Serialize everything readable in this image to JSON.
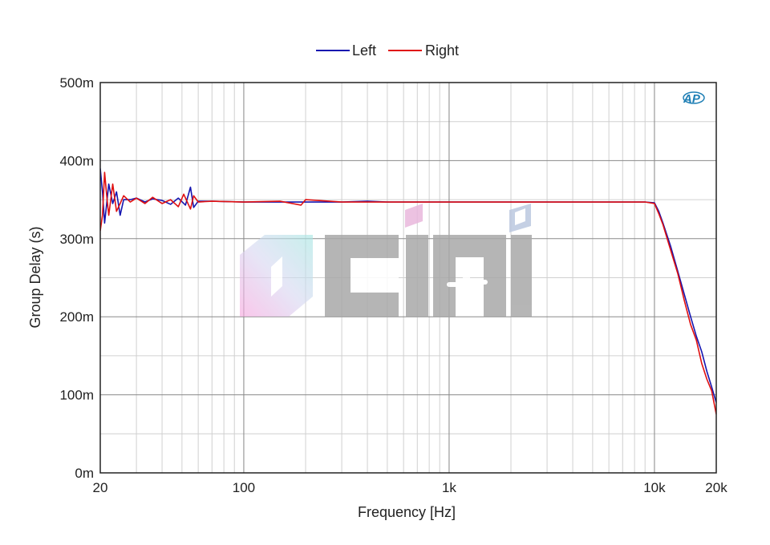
{
  "chart_data": {
    "type": "line",
    "title": "",
    "xlabel": "Frequency [Hz]",
    "ylabel": "Group Delay (s)",
    "xscale": "log",
    "xlim": [
      20,
      20000
    ],
    "ylim": [
      0,
      0.5
    ],
    "x_ticks": [
      {
        "value": 20,
        "label": "20"
      },
      {
        "value": 100,
        "label": "100"
      },
      {
        "value": 1000,
        "label": "1k"
      },
      {
        "value": 10000,
        "label": "10k"
      },
      {
        "value": 20000,
        "label": "20k"
      }
    ],
    "y_ticks": [
      {
        "value": 0,
        "label": "0m"
      },
      {
        "value": 0.1,
        "label": "100m"
      },
      {
        "value": 0.2,
        "label": "200m"
      },
      {
        "value": 0.3,
        "label": "300m"
      },
      {
        "value": 0.4,
        "label": "400m"
      },
      {
        "value": 0.5,
        "label": "500m"
      }
    ],
    "grid": true,
    "legend_position": "top-center",
    "logo_text": "AP",
    "series": [
      {
        "name": "Left",
        "color": "#1515b0",
        "points": [
          [
            20,
            0.39
          ],
          [
            20.5,
            0.36
          ],
          [
            21,
            0.32
          ],
          [
            22,
            0.37
          ],
          [
            23,
            0.345
          ],
          [
            24,
            0.36
          ],
          [
            25,
            0.33
          ],
          [
            26,
            0.35
          ],
          [
            28,
            0.35
          ],
          [
            30,
            0.352
          ],
          [
            33,
            0.347
          ],
          [
            36,
            0.351
          ],
          [
            40,
            0.349
          ],
          [
            44,
            0.344
          ],
          [
            48,
            0.352
          ],
          [
            52,
            0.343
          ],
          [
            55,
            0.366
          ],
          [
            57,
            0.34
          ],
          [
            60,
            0.348
          ],
          [
            70,
            0.348
          ],
          [
            100,
            0.347
          ],
          [
            200,
            0.347
          ],
          [
            300,
            0.347
          ],
          [
            400,
            0.348
          ],
          [
            500,
            0.347
          ],
          [
            1000,
            0.347
          ],
          [
            2000,
            0.347
          ],
          [
            5000,
            0.347
          ],
          [
            9000,
            0.347
          ],
          [
            10000,
            0.346
          ],
          [
            10500,
            0.335
          ],
          [
            11000,
            0.32
          ],
          [
            12000,
            0.29
          ],
          [
            13000,
            0.258
          ],
          [
            14000,
            0.228
          ],
          [
            15000,
            0.2
          ],
          [
            16000,
            0.175
          ],
          [
            17000,
            0.155
          ],
          [
            18000,
            0.13
          ],
          [
            19000,
            0.11
          ],
          [
            20000,
            0.09
          ]
        ]
      },
      {
        "name": "Right",
        "color": "#e01010",
        "points": [
          [
            20,
            0.31
          ],
          [
            20.5,
            0.33
          ],
          [
            21,
            0.385
          ],
          [
            21.5,
            0.355
          ],
          [
            22,
            0.33
          ],
          [
            23,
            0.37
          ],
          [
            24,
            0.335
          ],
          [
            25,
            0.345
          ],
          [
            26,
            0.355
          ],
          [
            28,
            0.347
          ],
          [
            30,
            0.352
          ],
          [
            33,
            0.345
          ],
          [
            36,
            0.353
          ],
          [
            40,
            0.345
          ],
          [
            44,
            0.35
          ],
          [
            48,
            0.341
          ],
          [
            51,
            0.357
          ],
          [
            55,
            0.338
          ],
          [
            57,
            0.355
          ],
          [
            60,
            0.347
          ],
          [
            70,
            0.348
          ],
          [
            100,
            0.347
          ],
          [
            150,
            0.348
          ],
          [
            190,
            0.343
          ],
          [
            200,
            0.35
          ],
          [
            300,
            0.347
          ],
          [
            400,
            0.347
          ],
          [
            500,
            0.347
          ],
          [
            1000,
            0.347
          ],
          [
            2000,
            0.347
          ],
          [
            5000,
            0.347
          ],
          [
            9000,
            0.347
          ],
          [
            10000,
            0.345
          ],
          [
            10500,
            0.332
          ],
          [
            11000,
            0.318
          ],
          [
            12000,
            0.285
          ],
          [
            13000,
            0.255
          ],
          [
            14000,
            0.22
          ],
          [
            15000,
            0.19
          ],
          [
            16000,
            0.17
          ],
          [
            17000,
            0.14
          ],
          [
            18000,
            0.12
          ],
          [
            19000,
            0.105
          ],
          [
            20000,
            0.075
          ]
        ]
      }
    ]
  }
}
